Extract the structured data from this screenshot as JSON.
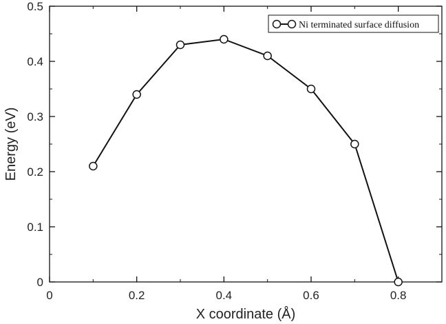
{
  "chart_data": {
    "type": "line",
    "xlabel": "X coordinate (Å)",
    "ylabel": "Energy (eV)",
    "xlim": [
      0,
      0.9
    ],
    "ylim": [
      0,
      0.5
    ],
    "x_ticks": [
      0,
      0.2,
      0.4,
      0.6,
      0.8
    ],
    "y_ticks": [
      0,
      0.1,
      0.2,
      0.3,
      0.4,
      0.5
    ],
    "x_tick_labels": [
      "0",
      "0.2",
      "0.4",
      "0.6",
      "0.8"
    ],
    "y_tick_labels": [
      "0",
      "0.1",
      "0.2",
      "0.3",
      "0.4",
      "0.5"
    ],
    "grid": false,
    "legend_position": "top-right",
    "series": [
      {
        "name": "Ni terminated surface diffusion",
        "marker": "open-circle",
        "color": "#111111",
        "x": [
          0.1,
          0.2,
          0.3,
          0.4,
          0.5,
          0.6,
          0.7,
          0.8
        ],
        "y": [
          0.21,
          0.34,
          0.43,
          0.44,
          0.41,
          0.35,
          0.25,
          0.0
        ]
      }
    ]
  }
}
